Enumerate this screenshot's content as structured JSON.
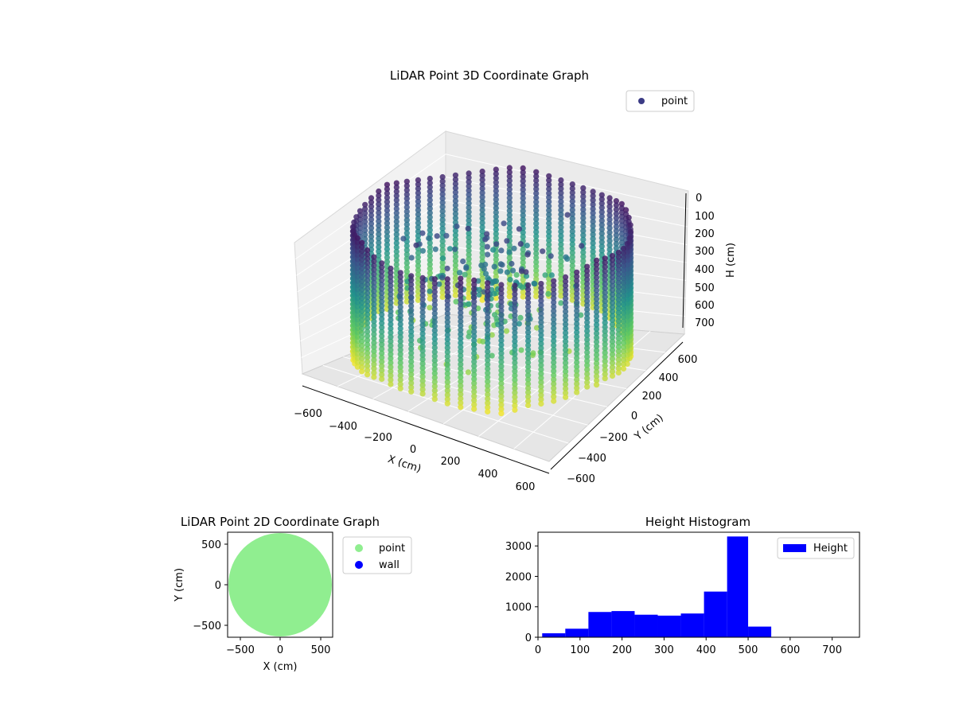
{
  "chart_data": [
    {
      "type": "scatter",
      "title": "LiDAR Point 3D Coordinate Graph",
      "projection": "3d",
      "xlabel": "X (cm)",
      "ylabel": "Y (cm)",
      "zlabel": "H (cm)",
      "xlim": [
        -650,
        650
      ],
      "ylim": [
        -650,
        650
      ],
      "zlim": [
        750,
        0
      ],
      "z_axis_inverted": true,
      "xticks": [
        "−600",
        "−400",
        "−200",
        "0",
        "200",
        "400",
        "600"
      ],
      "yticks": [
        "−600",
        "−400",
        "−200",
        "0",
        "200",
        "400",
        "600"
      ],
      "zticks": [
        "0",
        "100",
        "200",
        "300",
        "400",
        "500",
        "600",
        "700"
      ],
      "colormap": "viridis",
      "legend": {
        "position": "top-right",
        "entries": [
          {
            "label": "point",
            "color": "#3b3b85"
          }
        ]
      },
      "description_data": {
        "ring_radius_cm": 560,
        "columns": 64,
        "height_range_cm": [
          0,
          740
        ]
      }
    },
    {
      "type": "scatter",
      "title": "LiDAR Point 2D Coordinate Graph",
      "xlabel": "X (cm)",
      "ylabel": "Y (cm)",
      "xlim": [
        -650,
        650
      ],
      "ylim": [
        -650,
        650
      ],
      "xticks": [
        "−500",
        "0",
        "500"
      ],
      "yticks": [
        "500",
        "0",
        "−500"
      ],
      "grid": false,
      "legend": {
        "position": "outside-right",
        "entries": [
          {
            "label": "point",
            "color": "#90ee90"
          },
          {
            "label": "wall",
            "color": "#0000ff"
          }
        ]
      },
      "series": [
        {
          "name": "point",
          "color": "#90ee90",
          "shape": "filled disk",
          "radius_cm": 640
        },
        {
          "name": "wall",
          "color": "#0000ff",
          "points": []
        }
      ]
    },
    {
      "type": "bar",
      "subtype": "histogram",
      "title": "Height Histogram",
      "xlabel": "",
      "ylabel": "",
      "xlim": [
        0,
        765
      ],
      "ylim": [
        0,
        3450
      ],
      "xticks": [
        "0",
        "100",
        "200",
        "300",
        "400",
        "500",
        "600",
        "700"
      ],
      "yticks": [
        "0",
        "1000",
        "2000",
        "3000"
      ],
      "color": "#0000ff",
      "legend": {
        "position": "top-right",
        "entries": [
          {
            "label": "Height",
            "color": "#0000ff"
          }
        ]
      },
      "bins": [
        {
          "from": 10,
          "to": 65,
          "count": 130
        },
        {
          "from": 65,
          "to": 120,
          "count": 280
        },
        {
          "from": 120,
          "to": 175,
          "count": 830
        },
        {
          "from": 175,
          "to": 230,
          "count": 860
        },
        {
          "from": 230,
          "to": 285,
          "count": 740
        },
        {
          "from": 285,
          "to": 340,
          "count": 710
        },
        {
          "from": 340,
          "to": 395,
          "count": 780
        },
        {
          "from": 395,
          "to": 450,
          "count": 1500
        },
        {
          "from": 450,
          "to": 500,
          "count": 3310
        },
        {
          "from": 500,
          "to": 555,
          "count": 350
        }
      ]
    }
  ]
}
